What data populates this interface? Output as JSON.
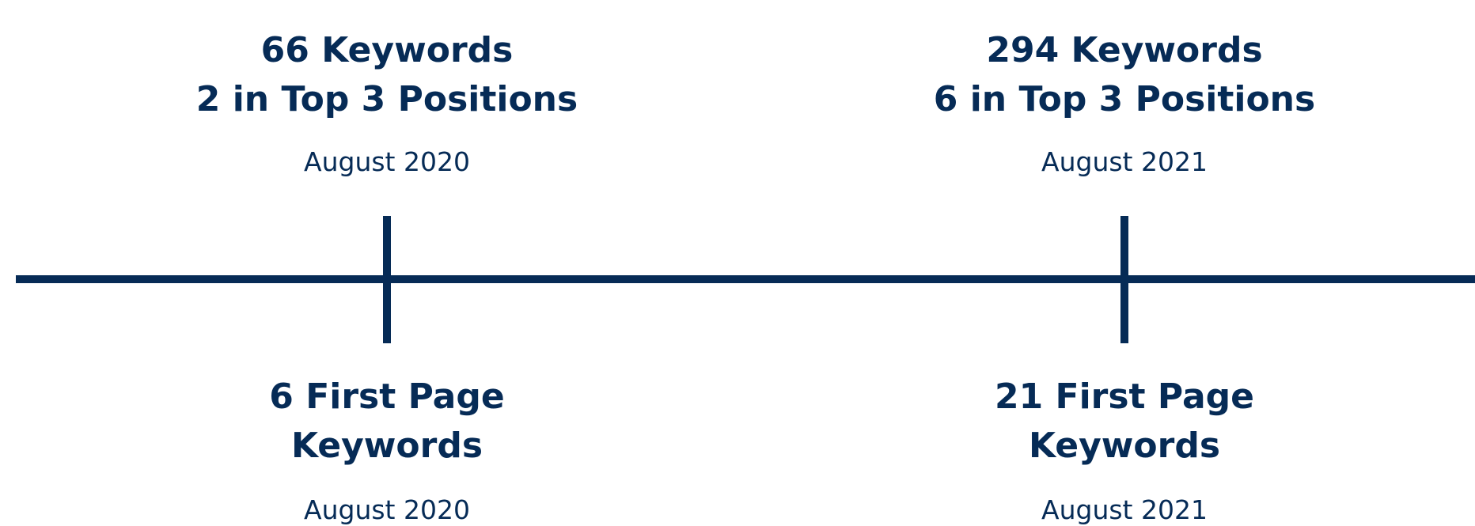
{
  "milestones": [
    {
      "top": {
        "lines": [
          "66 Keywords",
          "2 in Top 3 Positions"
        ],
        "date": "August 2020"
      },
      "bottom": {
        "lines": [
          "6 First Page",
          "Keywords"
        ],
        "date": "August 2020"
      }
    },
    {
      "top": {
        "lines": [
          "294 Keywords",
          "6 in Top 3 Positions"
        ],
        "date": "August 2021"
      },
      "bottom": {
        "lines": [
          "21 First Page",
          "Keywords"
        ],
        "date": "August 2021"
      }
    }
  ]
}
